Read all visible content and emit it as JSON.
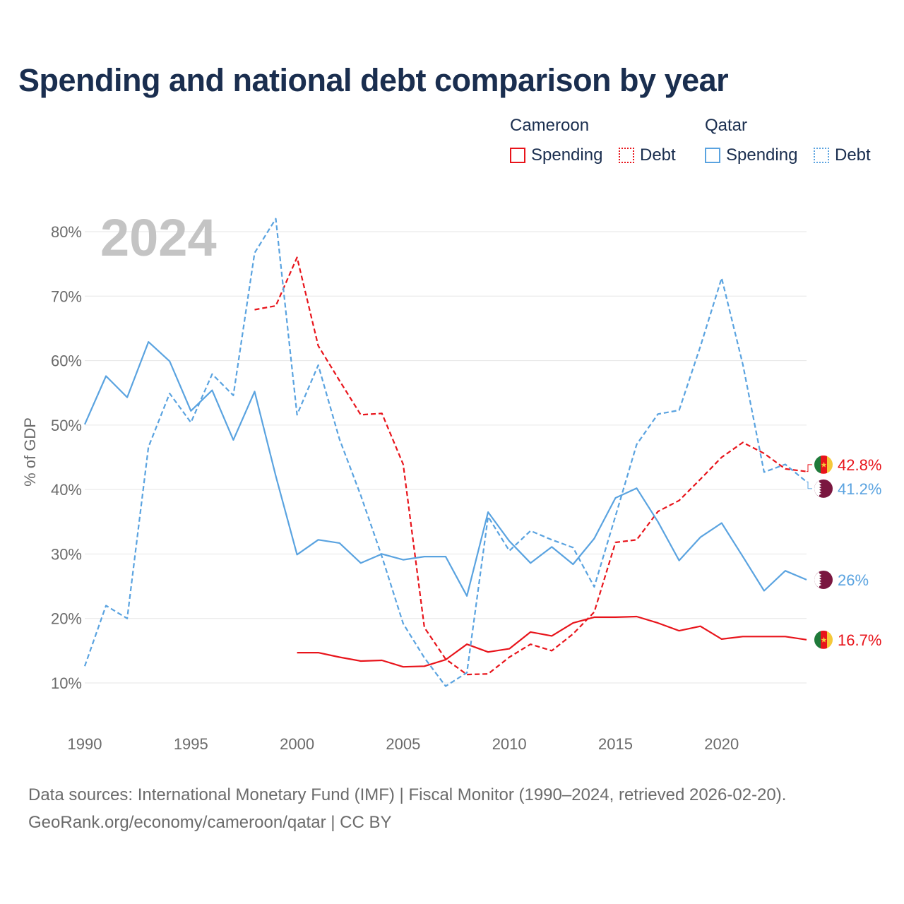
{
  "title": "Spending and national debt comparison by year",
  "legend": {
    "groups": [
      {
        "name": "Cameroon",
        "color": "#e8141b",
        "items": [
          "Spending",
          "Debt"
        ]
      },
      {
        "name": "Qatar",
        "color": "#5aa3e0",
        "items": [
          "Spending",
          "Debt"
        ]
      }
    ]
  },
  "year_watermark": "2024",
  "sources": {
    "line1": "Data sources: International Monetary Fund (IMF) | Fiscal Monitor (1990–2024, retrieved 2026-02-20).",
    "line2": "GeoRank.org/economy/cameroon/qatar | CC BY"
  },
  "chart_data": {
    "type": "line",
    "title": "Spending and national debt comparison by year",
    "xlabel": "",
    "ylabel": "% of GDP",
    "xlim": [
      1990,
      2024
    ],
    "ylim": [
      5,
      85
    ],
    "xticks": [
      1990,
      1995,
      2000,
      2005,
      2010,
      2015,
      2020
    ],
    "xtick_labels": [
      "1990",
      "1995",
      "2000",
      "2005",
      "2010",
      "2015",
      "2020"
    ],
    "yticks": [
      10,
      20,
      30,
      40,
      50,
      60,
      70,
      80
    ],
    "ytick_labels": [
      "10%",
      "20%",
      "30%",
      "40%",
      "50%",
      "60%",
      "70%",
      "80%"
    ],
    "grid": true,
    "series": [
      {
        "name": "Cameroon Spending",
        "country": "Cameroon",
        "metric": "Spending",
        "color": "#e8141b",
        "dash": "solid",
        "flag": "cameroon",
        "end_label": "16.7%",
        "x": [
          2000,
          2001,
          2002,
          2003,
          2004,
          2005,
          2006,
          2007,
          2008,
          2009,
          2010,
          2011,
          2012,
          2013,
          2014,
          2015,
          2016,
          2017,
          2018,
          2019,
          2020,
          2021,
          2022,
          2023,
          2024
        ],
        "y": [
          14.7,
          14.7,
          14.0,
          13.4,
          13.5,
          12.5,
          12.6,
          13.6,
          16.0,
          14.8,
          15.3,
          17.9,
          17.3,
          19.3,
          20.2,
          20.2,
          20.3,
          19.3,
          18.1,
          18.8,
          16.8,
          17.2,
          17.2,
          17.2,
          16.7
        ]
      },
      {
        "name": "Cameroon Debt",
        "country": "Cameroon",
        "metric": "Debt",
        "color": "#e8141b",
        "dash": "dashed",
        "flag": "cameroon",
        "end_label": "42.8%",
        "x": [
          1998,
          1999,
          2000,
          2001,
          2002,
          2003,
          2004,
          2005,
          2006,
          2007,
          2008,
          2009,
          2010,
          2011,
          2012,
          2013,
          2014,
          2015,
          2016,
          2017,
          2018,
          2019,
          2020,
          2021,
          2022,
          2023,
          2024
        ],
        "y": [
          67.9,
          68.5,
          76.0,
          62.3,
          56.9,
          51.6,
          51.8,
          43.9,
          18.6,
          13.7,
          11.3,
          11.4,
          14.0,
          16.0,
          15.0,
          17.6,
          21.0,
          31.8,
          32.2,
          36.6,
          38.3,
          41.6,
          45.0,
          47.3,
          45.6,
          43.2,
          42.8
        ]
      },
      {
        "name": "Qatar Spending",
        "country": "Qatar",
        "metric": "Spending",
        "color": "#5aa3e0",
        "dash": "solid",
        "flag": "qatar",
        "end_label": "26%",
        "x": [
          1990,
          1991,
          1992,
          1993,
          1994,
          1995,
          1996,
          1997,
          1998,
          1999,
          2000,
          2001,
          2002,
          2003,
          2004,
          2005,
          2006,
          2007,
          2008,
          2009,
          2010,
          2011,
          2012,
          2013,
          2014,
          2015,
          2016,
          2017,
          2018,
          2019,
          2020,
          2021,
          2022,
          2023,
          2024
        ],
        "y": [
          50.1,
          57.6,
          54.3,
          62.9,
          59.9,
          52.2,
          55.4,
          47.7,
          55.2,
          42.1,
          29.9,
          32.2,
          31.7,
          28.6,
          30.0,
          29.1,
          29.6,
          29.6,
          23.5,
          36.5,
          32.0,
          28.6,
          31.1,
          28.4,
          32.4,
          38.7,
          40.2,
          35.0,
          29.0,
          32.6,
          34.8,
          29.6,
          24.3,
          27.4,
          26.0
        ]
      },
      {
        "name": "Qatar Debt",
        "country": "Qatar",
        "metric": "Debt",
        "color": "#5aa3e0",
        "dash": "dashed",
        "flag": "qatar",
        "end_label": "41.2%",
        "x": [
          1990,
          1991,
          1992,
          1993,
          1994,
          1995,
          1996,
          1997,
          1998,
          1999,
          2000,
          2001,
          2002,
          2003,
          2004,
          2005,
          2006,
          2007,
          2008,
          2009,
          2010,
          2011,
          2012,
          2013,
          2014,
          2015,
          2016,
          2017,
          2018,
          2019,
          2020,
          2021,
          2022,
          2023,
          2024
        ],
        "y": [
          12.6,
          22.0,
          20.0,
          46.6,
          54.9,
          50.4,
          57.9,
          54.6,
          76.7,
          82.0,
          51.6,
          59.3,
          47.8,
          39.1,
          29.6,
          19.2,
          13.9,
          9.5,
          11.6,
          35.8,
          30.5,
          33.6,
          32.2,
          31.0,
          24.9,
          35.9,
          47.0,
          51.7,
          52.3,
          62.2,
          72.8,
          59.4,
          42.7,
          43.9,
          41.2
        ]
      }
    ]
  }
}
